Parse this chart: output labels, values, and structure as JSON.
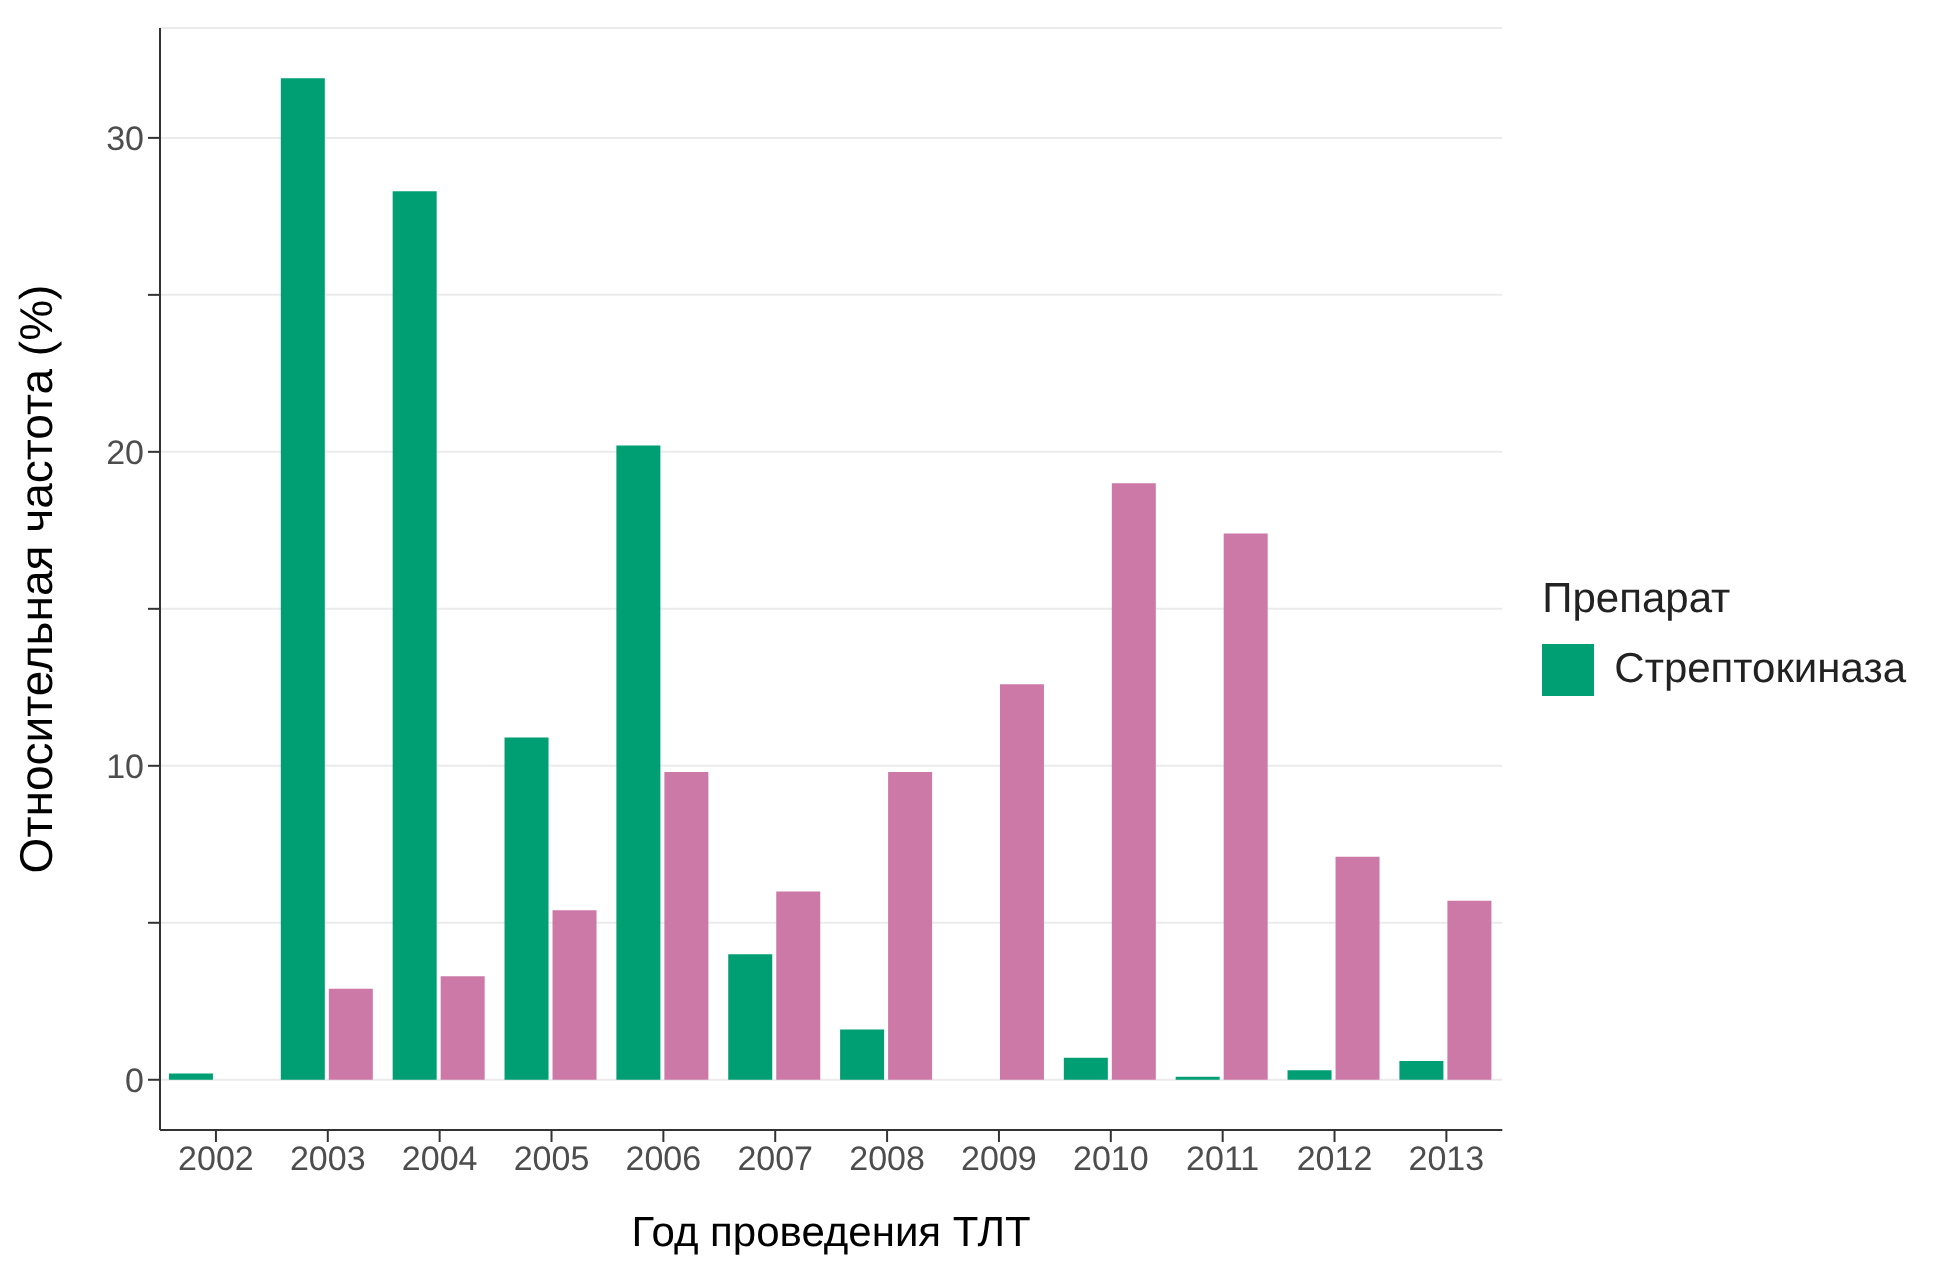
{
  "chart_data": {
    "type": "bar",
    "xlabel": "Год проведения ТЛТ",
    "ylabel": "Относительная частота (%)",
    "legend_title": "Препарат",
    "categories": [
      "2002",
      "2003",
      "2004",
      "2005",
      "2006",
      "2007",
      "2008",
      "2009",
      "2010",
      "2011",
      "2012",
      "2013"
    ],
    "series": [
      {
        "name": "Стрептокиназа",
        "color": "#009e73",
        "values": [
          0.2,
          31.9,
          28.3,
          10.9,
          20.2,
          4.0,
          1.6,
          0,
          0.7,
          0.1,
          0.3,
          0.6
        ]
      },
      {
        "color": "#cc79a7",
        "values": [
          0,
          2.9,
          3.3,
          5.4,
          9.8,
          6.0,
          9.8,
          12.6,
          19.0,
          17.4,
          7.1,
          5.7
        ]
      }
    ],
    "ylim": [
      -1.6,
      33.5
    ],
    "yticks": [
      0,
      {
        "value": 5,
        "label": null
      },
      10,
      {
        "value": 15,
        "label": null
      },
      20,
      {
        "value": 25,
        "label": null
      },
      30
    ],
    "grid": "y",
    "legend": "right"
  }
}
